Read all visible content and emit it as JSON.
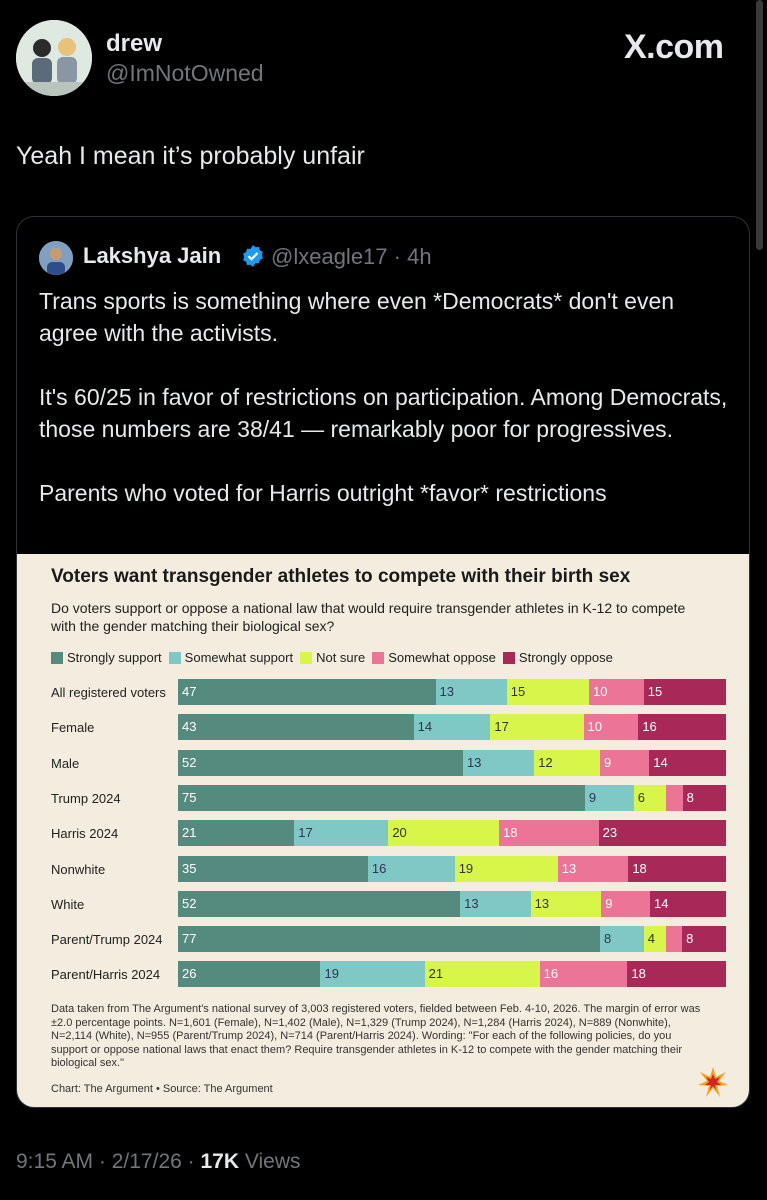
{
  "tweet": {
    "author_name": "drew",
    "author_handle": "@ImNotOwned",
    "brand": "X.com",
    "text": "Yeah I mean it’s probably unfair",
    "time": "9:15 AM",
    "date": "2/17/26",
    "views_count": "17K",
    "views_label": "Views"
  },
  "quote": {
    "author_name": "Lakshya Jain",
    "author_handle": "@lxeagle17",
    "age": "4h",
    "paragraphs": [
      "Trans sports is something where even *Democrats* don't even agree with the activists.",
      "It's 60/25 in favor of restrictions on participation. Among Democrats, those numbers are 38/41 — remarkably poor for progressives.",
      "Parents who voted for Harris outright *favor* restrictions"
    ]
  },
  "chart_data": {
    "type": "bar",
    "orientation": "horizontal-stacked",
    "title": "Voters want transgender athletes to compete with their birth sex",
    "subtitle": "Do voters support or oppose a national law that would require transgender athletes in K-12 to compete with the gender matching their biological sex?",
    "categories": [
      "All registered voters",
      "Female",
      "Male",
      "Trump 2024",
      "Harris 2024",
      "Nonwhite",
      "White",
      "Parent/Trump 2024",
      "Parent/Harris 2024"
    ],
    "series": [
      {
        "name": "Strongly support",
        "color": "#558b7e",
        "values": [
          47,
          43,
          52,
          75,
          21,
          35,
          52,
          77,
          26
        ]
      },
      {
        "name": "Somewhat support",
        "color": "#7fc8c6",
        "values": [
          13,
          14,
          13,
          9,
          17,
          16,
          13,
          8,
          19
        ]
      },
      {
        "name": "Not sure",
        "color": "#d8f54a",
        "values": [
          15,
          17,
          12,
          6,
          20,
          19,
          13,
          4,
          21
        ]
      },
      {
        "name": "Somewhat oppose",
        "color": "#ec7597",
        "values": [
          10,
          10,
          9,
          3,
          18,
          13,
          9,
          3,
          16
        ]
      },
      {
        "name": "Strongly oppose",
        "color": "#a82958",
        "values": [
          15,
          16,
          14,
          8,
          23,
          18,
          14,
          8,
          18
        ]
      }
    ],
    "shown_labels": [
      [
        "47",
        "13",
        "15",
        "10",
        "15"
      ],
      [
        "43",
        "14",
        "17",
        "10",
        "16"
      ],
      [
        "52",
        "13",
        "12",
        "9",
        "14"
      ],
      [
        "75",
        "9",
        "6",
        "",
        "8"
      ],
      [
        "21",
        "17",
        "20",
        "18",
        "23"
      ],
      [
        "35",
        "16",
        "19",
        "13",
        "18"
      ],
      [
        "52",
        "13",
        "13",
        "9",
        "14"
      ],
      [
        "77",
        "8",
        "4",
        "",
        "8"
      ],
      [
        "26",
        "19",
        "21",
        "16",
        "18"
      ]
    ],
    "notes": "Data taken from The Argument's national survey of 3,003 registered voters, fielded between Feb. 4-10, 2026. The margin of error was ±2.0 percentage points. N=1,601 (Female), N=1,402 (Male), N=1,329 (Trump 2024), N=1,284 (Harris 2024), N=889 (Nonwhite), N=2,114 (White), N=955 (Parent/Trump 2024), N=714 (Parent/Harris 2024). Wording: \"For each of the following policies, do you support or oppose national laws that enact them? Require transgender athletes in K-12 to compete with the gender matching their biological sex.\"",
    "credit": "Chart: The Argument • Source: The Argument"
  }
}
